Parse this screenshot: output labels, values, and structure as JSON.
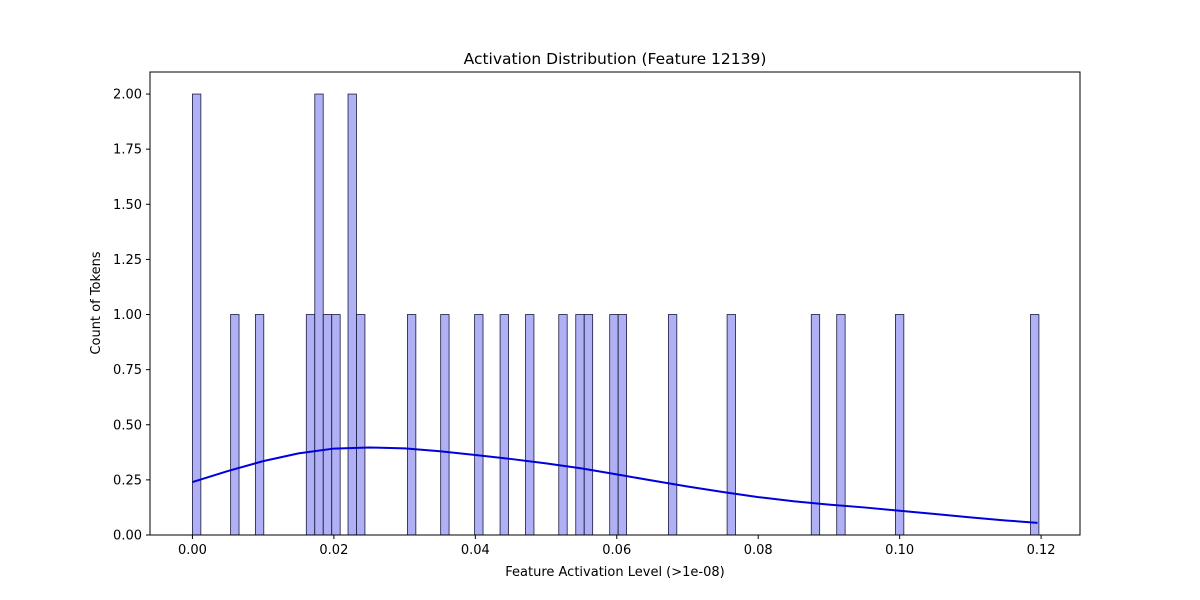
{
  "chart_data": {
    "type": "bar",
    "title": "Activation Distribution (Feature 12139)",
    "xlabel": "Feature Activation Level (>1e-08)",
    "ylabel": "Count of Tokens",
    "xlim": [
      -0.006,
      0.1255
    ],
    "ylim": [
      0,
      2.1
    ],
    "bin_width": 0.00119,
    "x_ticks": [
      0.0,
      0.02,
      0.04,
      0.06,
      0.08,
      0.1,
      0.12
    ],
    "x_tick_labels": [
      "0.00",
      "0.02",
      "0.04",
      "0.06",
      "0.08",
      "0.10",
      "0.12"
    ],
    "y_ticks": [
      0.0,
      0.25,
      0.5,
      0.75,
      1.0,
      1.25,
      1.5,
      1.75,
      2.0
    ],
    "y_tick_labels": [
      "0.00",
      "0.25",
      "0.50",
      "0.75",
      "1.00",
      "1.25",
      "1.50",
      "1.75",
      "2.00"
    ],
    "bars": [
      {
        "x": 0.0,
        "count": 2
      },
      {
        "x": 0.0054,
        "count": 1
      },
      {
        "x": 0.0089,
        "count": 1
      },
      {
        "x": 0.0161,
        "count": 1
      },
      {
        "x": 0.0173,
        "count": 2
      },
      {
        "x": 0.0185,
        "count": 1
      },
      {
        "x": 0.0197,
        "count": 1
      },
      {
        "x": 0.022,
        "count": 2
      },
      {
        "x": 0.0232,
        "count": 1
      },
      {
        "x": 0.0304,
        "count": 1
      },
      {
        "x": 0.0351,
        "count": 1
      },
      {
        "x": 0.0399,
        "count": 1
      },
      {
        "x": 0.0435,
        "count": 1
      },
      {
        "x": 0.0471,
        "count": 1
      },
      {
        "x": 0.0518,
        "count": 1
      },
      {
        "x": 0.0542,
        "count": 1
      },
      {
        "x": 0.0554,
        "count": 1
      },
      {
        "x": 0.059,
        "count": 1
      },
      {
        "x": 0.0602,
        "count": 1
      },
      {
        "x": 0.0673,
        "count": 1
      },
      {
        "x": 0.0756,
        "count": 1
      },
      {
        "x": 0.0875,
        "count": 1
      },
      {
        "x": 0.0911,
        "count": 1
      },
      {
        "x": 0.0994,
        "count": 1
      },
      {
        "x": 0.1185,
        "count": 1
      }
    ],
    "kde": {
      "x": [
        0.0,
        0.005,
        0.01,
        0.015,
        0.02,
        0.025,
        0.03,
        0.035,
        0.04,
        0.045,
        0.05,
        0.055,
        0.06,
        0.065,
        0.07,
        0.075,
        0.08,
        0.085,
        0.09,
        0.095,
        0.1,
        0.105,
        0.11,
        0.115,
        0.1195
      ],
      "y": [
        0.24,
        0.29,
        0.335,
        0.37,
        0.392,
        0.397,
        0.393,
        0.38,
        0.363,
        0.345,
        0.325,
        0.302,
        0.275,
        0.247,
        0.22,
        0.195,
        0.172,
        0.153,
        0.138,
        0.125,
        0.11,
        0.095,
        0.08,
        0.066,
        0.055
      ]
    },
    "colors": {
      "bar_fill": "#b0b0f5",
      "bar_edge": "#1a1a40",
      "kde_line": "#0000dd",
      "axis": "#000000"
    },
    "grid": false,
    "legend": "none"
  }
}
